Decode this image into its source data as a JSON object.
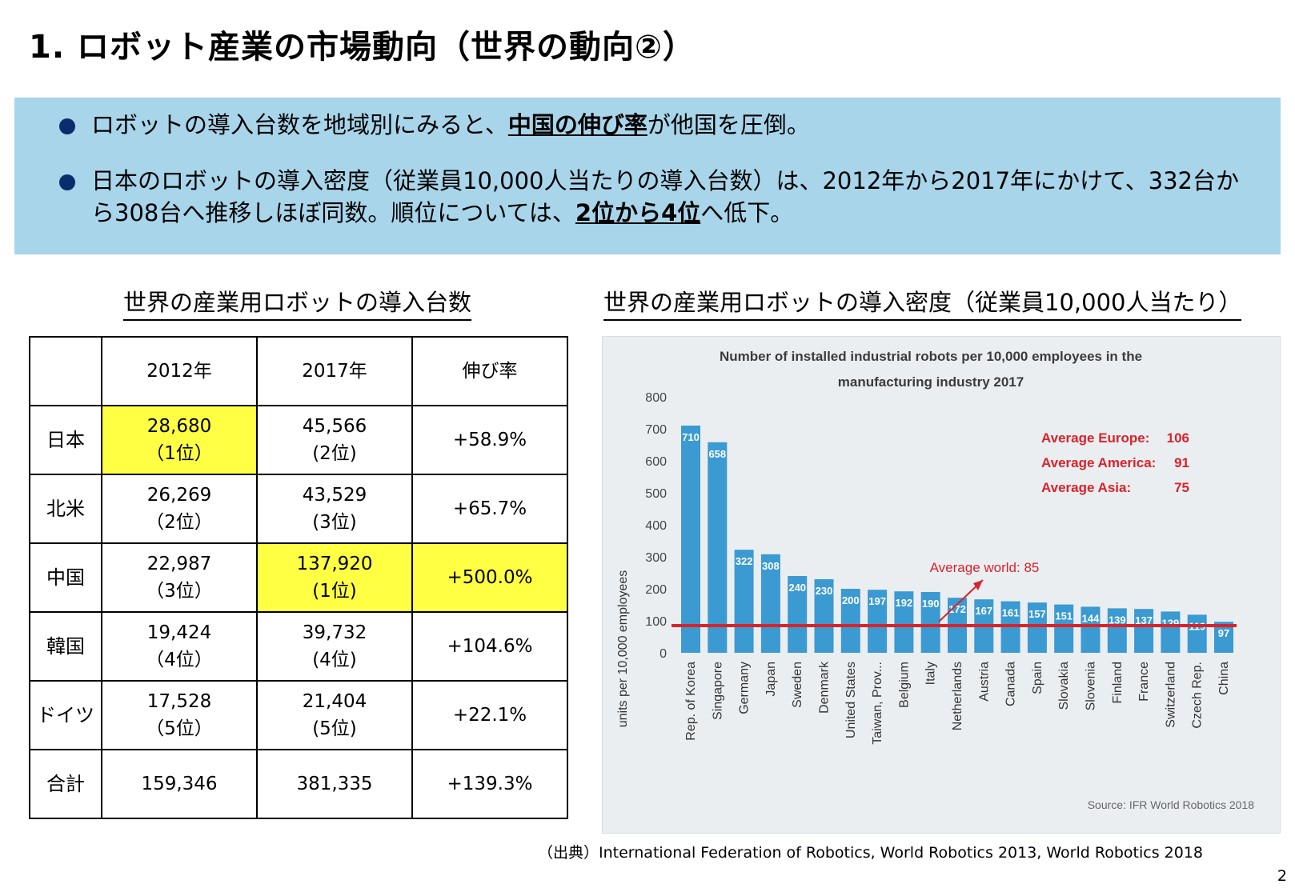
{
  "slide": {
    "title": "1. ロボット産業の市場動向（世界の動向②）",
    "page_number": "2"
  },
  "summary": {
    "bullet1": {
      "before": "ロボットの導入台数を地域別にみると、",
      "emph": "中国の伸び率",
      "after": "が他国を圧倒。"
    },
    "bullet2": {
      "before": "日本のロボットの導入密度（従業員10,000人当たりの導入台数）は、2012年から2017年にかけて、332台から308台へ推移しほぼ同数。順位については、",
      "emph": "2位から4位",
      "after": "へ低下。"
    }
  },
  "table": {
    "section_title": "世界の産業用ロボットの導入台数",
    "headers": [
      "",
      "2012年",
      "2017年",
      "伸び率"
    ],
    "rows": [
      {
        "region": "日本",
        "y2012": "28,680",
        "r2012": "（1位）",
        "y2017": "45,566",
        "r2017": "(2位)",
        "growth": "+58.9%",
        "hl2012": true,
        "hl2017": false,
        "hlg": false
      },
      {
        "region": "北米",
        "y2012": "26,269",
        "r2012": "（2位）",
        "y2017": "43,529",
        "r2017": "(3位)",
        "growth": "+65.7%",
        "hl2012": false,
        "hl2017": false,
        "hlg": false
      },
      {
        "region": "中国",
        "y2012": "22,987",
        "r2012": "（3位）",
        "y2017": "137,920",
        "r2017": "(1位)",
        "growth": "+500.0%",
        "hl2012": false,
        "hl2017": true,
        "hlg": true
      },
      {
        "region": "韓国",
        "y2012": "19,424",
        "r2012": "（4位）",
        "y2017": "39,732",
        "r2017": "(4位)",
        "growth": "+104.6%",
        "hl2012": false,
        "hl2017": false,
        "hlg": false
      },
      {
        "region": "ドイツ",
        "y2012": "17,528",
        "r2012": "（5位）",
        "y2017": "21,404",
        "r2017": "(5位)",
        "growth": "+22.1%",
        "hl2012": false,
        "hl2017": false,
        "hlg": false
      },
      {
        "region": "合計",
        "y2012": "159,346",
        "r2012": "",
        "y2017": "381,335",
        "r2017": "",
        "growth": "+139.3%",
        "hl2012": false,
        "hl2017": false,
        "hlg": false
      }
    ],
    "highlight_color": "#ffff44"
  },
  "chart_section_title": "世界の産業用ロボットの導入密度（従業員10,000人当たり）",
  "chart_data": {
    "type": "bar",
    "title_line1": "Number of installed industrial robots per 10,000 employees in the",
    "title_line2": "manufacturing industry 2017",
    "ylabel": "units per 10,000 employees",
    "xlabel": "",
    "ylim": [
      0,
      800
    ],
    "yticks": [
      0,
      100,
      200,
      300,
      400,
      500,
      600,
      700,
      800
    ],
    "categories": [
      "Rep. of Korea",
      "Singapore",
      "Germany",
      "Japan",
      "Sweden",
      "Denmark",
      "United States",
      "Taiwan, Prov...",
      "Belgium",
      "Italy",
      "Netherlands",
      "Austria",
      "Canada",
      "Spain",
      "Slovakia",
      "Slovenia",
      "Finland",
      "France",
      "Switzerland",
      "Czech Rep.",
      "China"
    ],
    "values": [
      710,
      658,
      322,
      308,
      240,
      230,
      200,
      197,
      192,
      190,
      172,
      167,
      161,
      157,
      151,
      144,
      139,
      137,
      129,
      119,
      97
    ],
    "bar_color": "#3a9ad1",
    "average_world": {
      "label": "Average world: 85",
      "value": 85,
      "color": "#d8232a"
    },
    "regional_averages": [
      {
        "label": "Average Europe:",
        "value": "106"
      },
      {
        "label": "Average America:",
        "value": "91"
      },
      {
        "label": "Average Asia:",
        "value": "75"
      }
    ],
    "source": "Source: IFR World Robotics 2018",
    "grid": false
  },
  "footer_source": "（出典）International Federation of Robotics, World Robotics 2013, World Robotics 2018"
}
